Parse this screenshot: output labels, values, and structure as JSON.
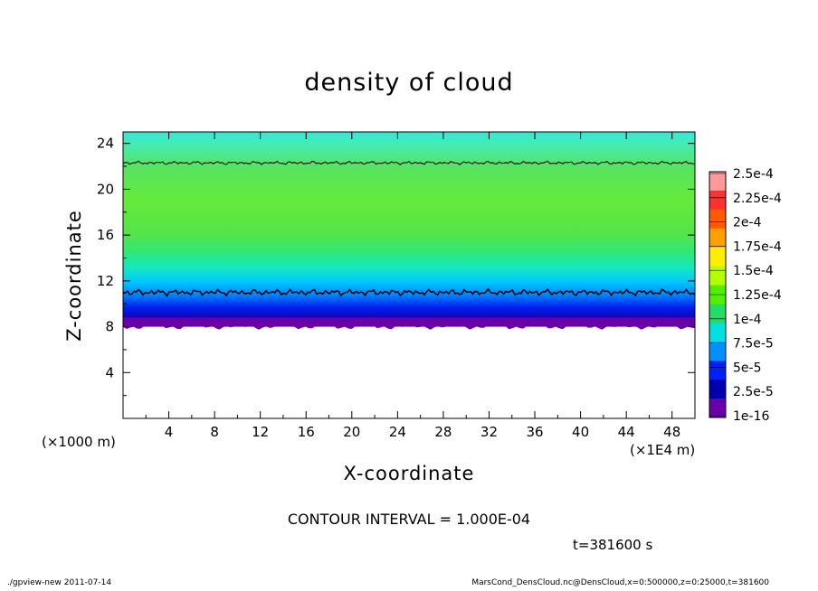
{
  "chart_data": {
    "type": "heatmap",
    "title": "density of cloud",
    "xlabel": "X-coordinate",
    "ylabel": "Z-coordinate",
    "x_unit_label": "(×1000 m)",
    "x_multiplier_label": "(×1E4 m)",
    "xlim": [
      0,
      50
    ],
    "ylim": [
      0,
      25
    ],
    "x_ticks": [
      "4",
      "8",
      "12",
      "16",
      "20",
      "24",
      "28",
      "32",
      "36",
      "40",
      "44",
      "48"
    ],
    "y_ticks": [
      "4",
      "8",
      "12",
      "16",
      "20",
      "24"
    ],
    "x_tick_values": [
      4,
      8,
      12,
      16,
      20,
      24,
      28,
      32,
      36,
      40,
      44,
      48
    ],
    "y_tick_values": [
      4,
      8,
      12,
      16,
      20,
      24
    ],
    "colorbar": {
      "labels": [
        "2.5e-4",
        "2.25e-4",
        "2e-4",
        "1.75e-4",
        "1.5e-4",
        "1.25e-4",
        "1e-4",
        "7.5e-5",
        "5e-5",
        "2.5e-5",
        "1e-16"
      ],
      "colors": [
        "#ff9a9a",
        "#ff3030",
        "#ff5a00",
        "#ffa000",
        "#ffee00",
        "#b4ff00",
        "#55ee00",
        "#22dd66",
        "#00e0e0",
        "#0090ff",
        "#0020ff",
        "#0000b0",
        "#6a00a8"
      ]
    },
    "profile": [
      {
        "z": 8.0,
        "density": 2.5e-05
      },
      {
        "z": 9.0,
        "density": 5e-05
      },
      {
        "z": 10.0,
        "density": 7.5e-05
      },
      {
        "z": 11.0,
        "density": 9e-05
      },
      {
        "z": 13.0,
        "density": 0.00011
      },
      {
        "z": 16.0,
        "density": 0.000135
      },
      {
        "z": 20.0,
        "density": 0.00012
      },
      {
        "z": 22.0,
        "density": 0.0001
      },
      {
        "z": 24.0,
        "density": 8.5e-05
      },
      {
        "z": 25.0,
        "density": 8e-05
      }
    ],
    "cloud_bottom_z": 8.0,
    "contour_levels_z": [
      11.0,
      22.3
    ],
    "contour_interval_label": "CONTOUR INTERVAL = 1.000E-04",
    "time_label": "t=381600 s"
  },
  "footer": {
    "left": "./gpview-new   2011-07-14",
    "right": "MarsCond_DensCloud.nc@DensCloud,x=0:500000,z=0:25000,t=381600"
  }
}
